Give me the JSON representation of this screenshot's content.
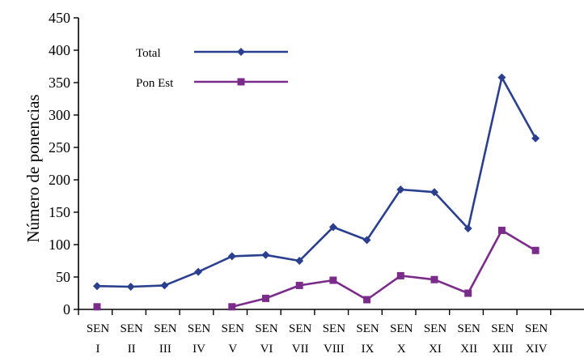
{
  "chart_data": {
    "type": "line",
    "ylabel": "Número de ponencias",
    "xlabel": "",
    "title": "",
    "ylim": [
      0,
      450
    ],
    "yticks": [
      0,
      50,
      100,
      150,
      200,
      250,
      300,
      350,
      400,
      450
    ],
    "grid": false,
    "legend_position": "top-left",
    "categories": [
      [
        "SEN",
        "I"
      ],
      [
        "SEN",
        "II"
      ],
      [
        "SEN",
        "III"
      ],
      [
        "SEN",
        "IV"
      ],
      [
        "SEN",
        "V"
      ],
      [
        "SEN",
        "VI"
      ],
      [
        "SEN",
        "VII"
      ],
      [
        "SEN",
        "VIII"
      ],
      [
        "SEN",
        "IX"
      ],
      [
        "SEN",
        "X"
      ],
      [
        "SEN",
        "XI"
      ],
      [
        "SEN",
        "XII"
      ],
      [
        "SEN",
        "XIII"
      ],
      [
        "SEN",
        "XIV"
      ]
    ],
    "series": [
      {
        "name": "Total",
        "color": "#2b3f8f",
        "marker": "diamond",
        "values": [
          36,
          35,
          37,
          58,
          82,
          84,
          75,
          127,
          107,
          185,
          181,
          125,
          358,
          264
        ]
      },
      {
        "name": "Pon Est",
        "color": "#7b2c8b",
        "marker": "square",
        "values": [
          4,
          null,
          null,
          null,
          4,
          17,
          37,
          45,
          15,
          52,
          46,
          25,
          122,
          91
        ]
      }
    ]
  }
}
